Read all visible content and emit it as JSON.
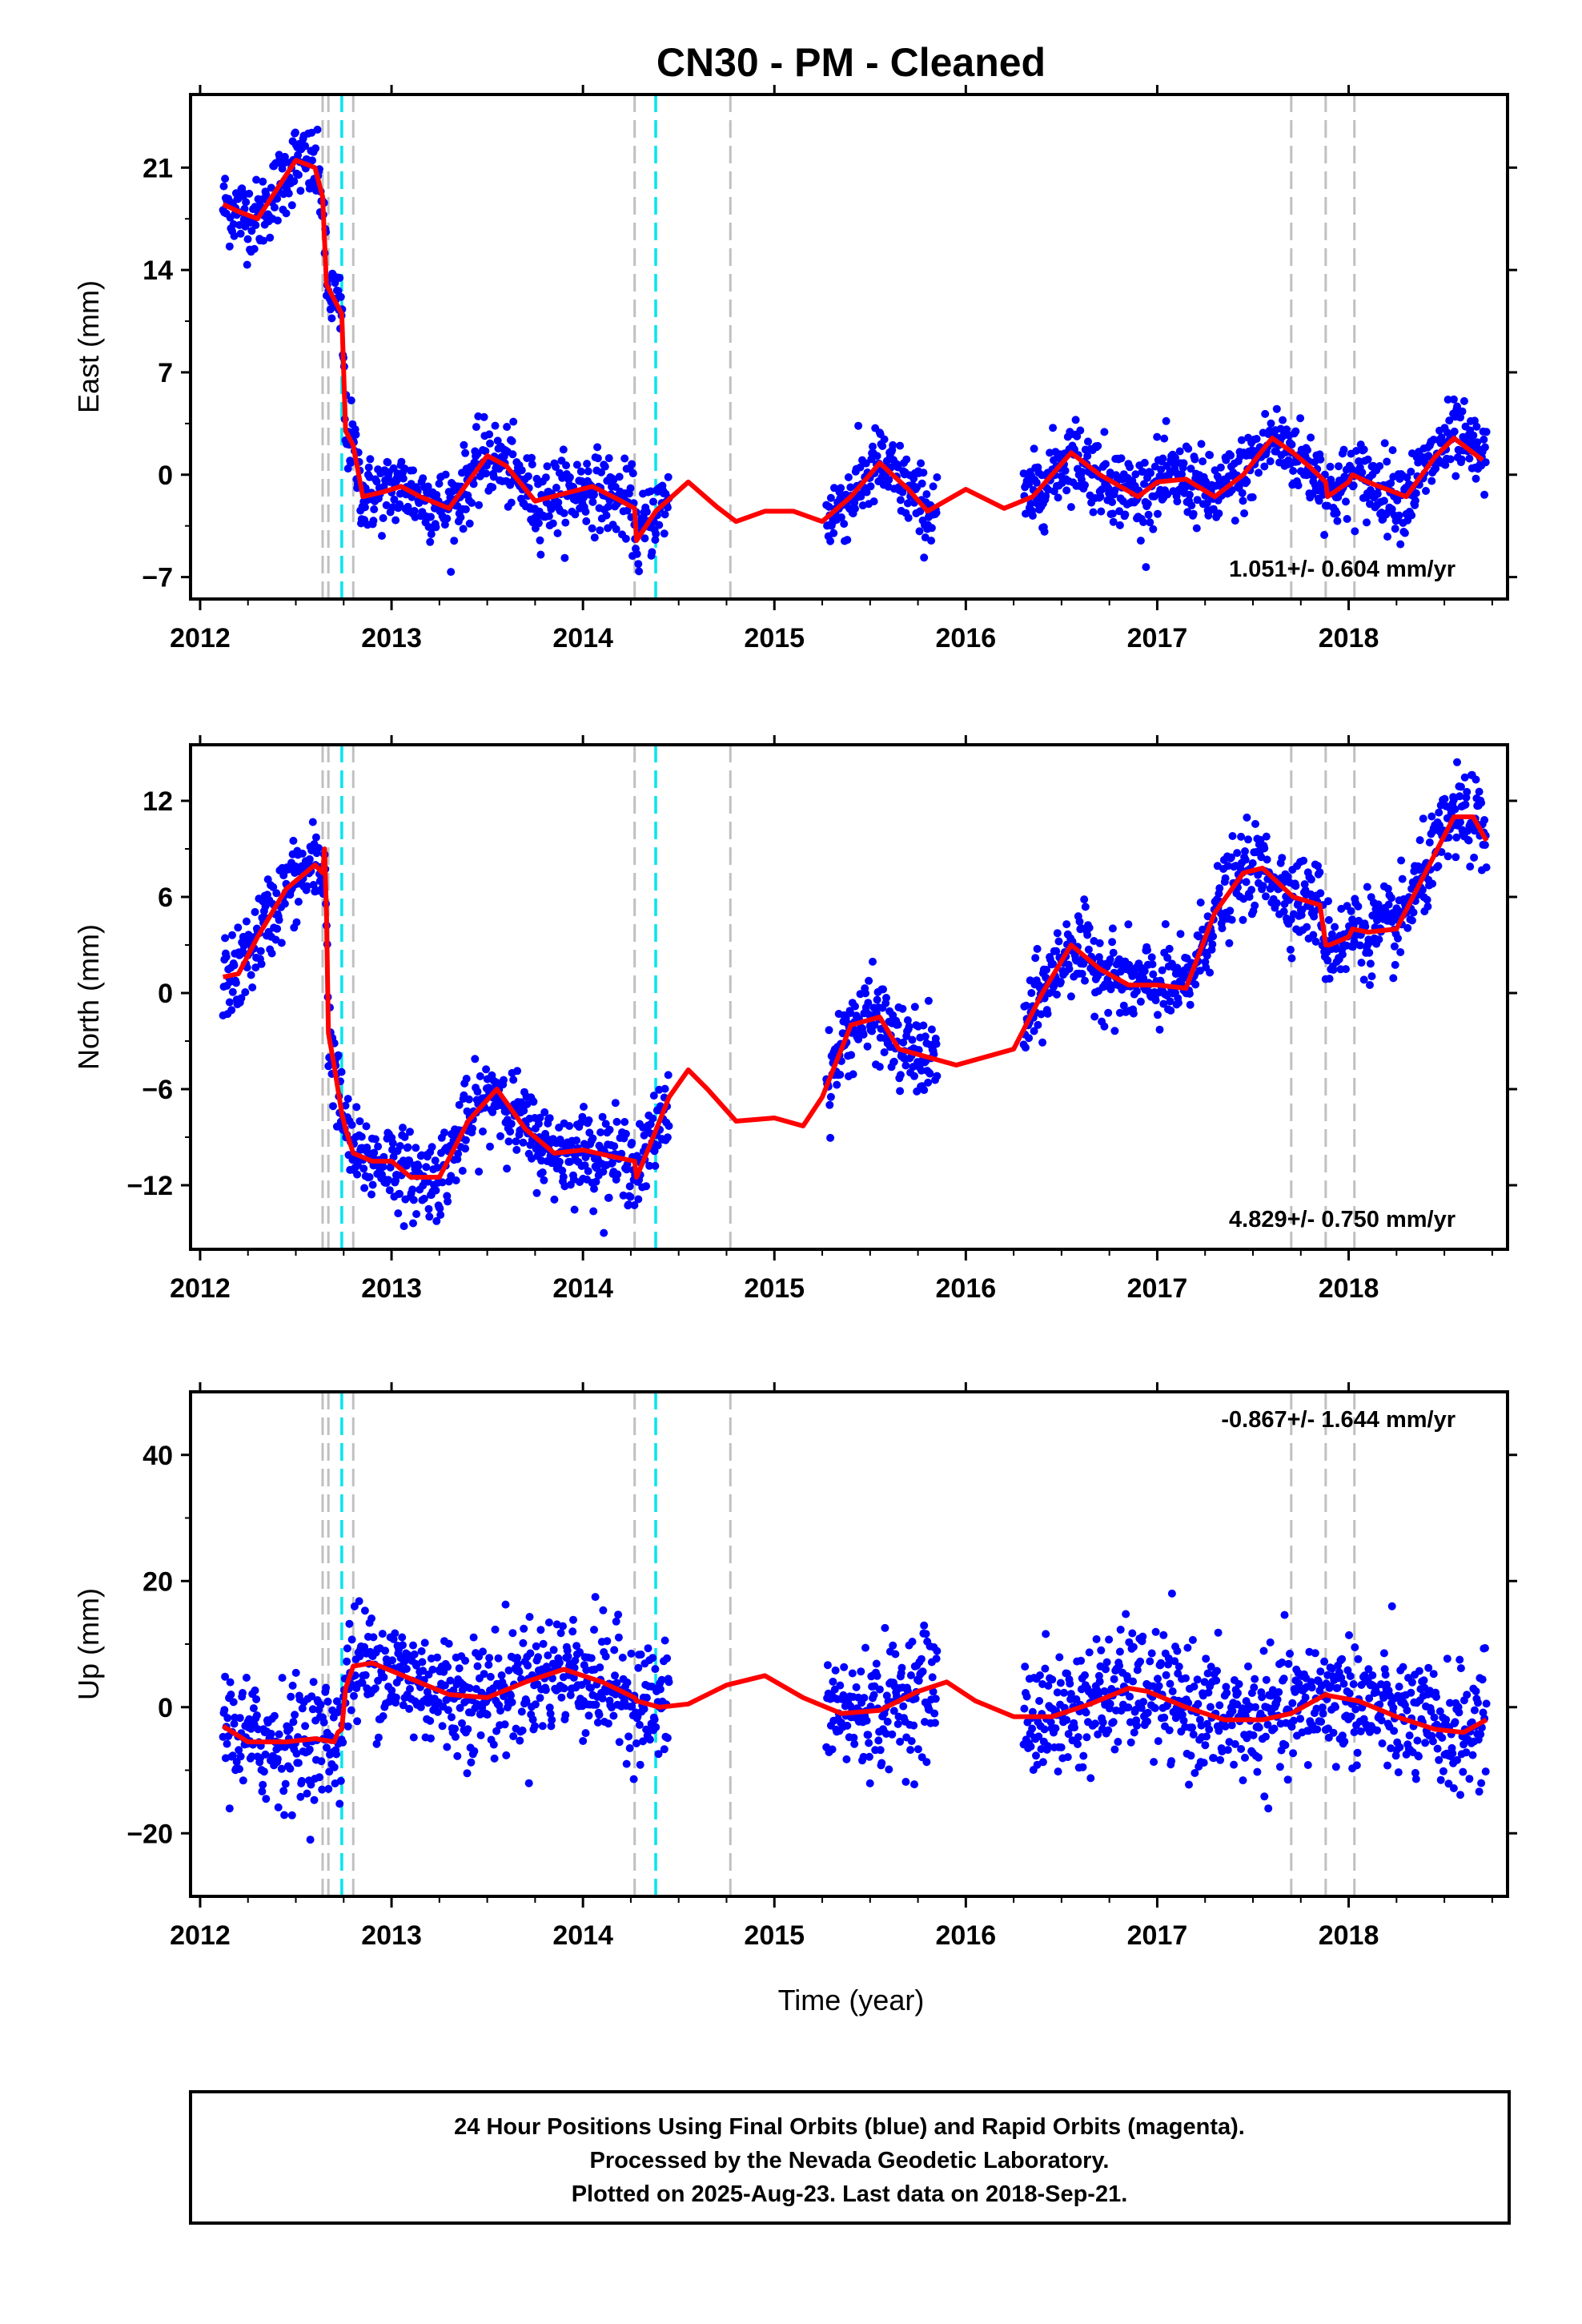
{
  "title": "CN30  - PM - Cleaned",
  "x_axis_label": "Time (year)",
  "footer": {
    "line1": "24 Hour Positions Using Final Orbits (blue) and Rapid Orbits (magenta).",
    "line2": "Processed by the Nevada Geodetic Laboratory.",
    "line3": "Plotted on 2025-Aug-23. Last data on 2018-Sep-21."
  },
  "colors": {
    "data_points": "#0000ff",
    "model_fit": "#ff0000",
    "break_gray": "#c0c0c0",
    "break_cyan": "#00e5ee"
  },
  "chart_data": [
    {
      "type": "scatter",
      "component": "East",
      "ylabel": "East (mm)",
      "xlim": [
        2011.95,
        2018.83
      ],
      "ylim": [
        -8.5,
        26
      ],
      "yticks": [
        -7,
        0,
        7,
        14,
        21
      ],
      "xticks": [
        2012,
        2013,
        2014,
        2015,
        2016,
        2017,
        2018
      ],
      "rate_label": "1.051+/- 0.604 mm/yr",
      "rate_position": "bottom-right",
      "grid": false,
      "model_fit": {
        "x": [
          2012.12,
          2012.2,
          2012.3,
          2012.4,
          2012.5,
          2012.6,
          2012.64,
          2012.66,
          2012.7,
          2012.74,
          2012.76,
          2012.8,
          2012.85,
          2012.95,
          2013.05,
          2013.15,
          2013.3,
          2013.5,
          2013.6,
          2013.75,
          2013.9,
          2014.05,
          2014.2,
          2014.27,
          2014.28,
          2014.38,
          2014.55,
          2014.7,
          2014.8,
          2014.95,
          2015.1,
          2015.25,
          2015.4,
          2015.55,
          2015.7,
          2015.8,
          2016.0,
          2016.2,
          2016.35,
          2016.55,
          2016.7,
          2016.9,
          2017.0,
          2017.15,
          2017.3,
          2017.45,
          2017.6,
          2017.71,
          2017.8,
          2017.88,
          2017.89,
          2018.0,
          2018.02,
          2018.1,
          2018.3,
          2018.45,
          2018.55,
          2018.7
        ],
        "y": [
          18.5,
          18.0,
          17.5,
          19.5,
          21.5,
          21.0,
          19.0,
          13.0,
          12.0,
          11.0,
          3.0,
          2.0,
          -1.5,
          -1.2,
          -0.8,
          -1.5,
          -2.3,
          1.3,
          0.6,
          -1.8,
          -1.3,
          -0.8,
          -1.8,
          -2.3,
          -4.5,
          -2.5,
          -0.5,
          -2.2,
          -3.2,
          -2.5,
          -2.5,
          -3.2,
          -1.5,
          0.8,
          -1.0,
          -2.5,
          -1.0,
          -2.3,
          -1.5,
          1.5,
          0.0,
          -1.5,
          -0.5,
          -0.3,
          -1.5,
          0.0,
          2.5,
          1.5,
          0.5,
          -0.5,
          -1.5,
          -0.5,
          0.0,
          -0.5,
          -1.5,
          1.2,
          2.5,
          1.0
        ]
      },
      "breaks": {
        "gray": [
          2012.64,
          2012.67,
          2012.8,
          2014.27,
          2014.77,
          2017.7,
          2017.88,
          2018.03
        ],
        "cyan": [
          2012.74,
          2014.38
        ]
      }
    },
    {
      "type": "scatter",
      "component": "North",
      "ylabel": "North (mm)",
      "xlim": [
        2011.95,
        2018.83
      ],
      "ylim": [
        -16,
        15.5
      ],
      "yticks": [
        -12,
        -6,
        0,
        6,
        12
      ],
      "xticks": [
        2012,
        2013,
        2014,
        2015,
        2016,
        2017,
        2018
      ],
      "rate_label": "4.829+/- 0.750 mm/yr",
      "rate_position": "bottom-right",
      "grid": false,
      "model_fit": {
        "x": [
          2012.12,
          2012.2,
          2012.3,
          2012.45,
          2012.6,
          2012.64,
          2012.65,
          2012.66,
          2012.67,
          2012.7,
          2012.74,
          2012.76,
          2012.8,
          2012.9,
          2013.0,
          2013.1,
          2013.25,
          2013.4,
          2013.55,
          2013.7,
          2013.85,
          2014.0,
          2014.15,
          2014.27,
          2014.28,
          2014.35,
          2014.45,
          2014.55,
          2014.65,
          2014.8,
          2015.0,
          2015.15,
          2015.25,
          2015.4,
          2015.55,
          2015.65,
          2015.8,
          2015.95,
          2016.1,
          2016.25,
          2016.4,
          2016.55,
          2016.7,
          2016.85,
          2017.0,
          2017.15,
          2017.3,
          2017.45,
          2017.55,
          2017.71,
          2017.85,
          2017.88,
          2017.9,
          2018.0,
          2018.02,
          2018.1,
          2018.25,
          2018.4,
          2018.55,
          2018.65,
          2018.72
        ],
        "y": [
          1.0,
          1.2,
          3.5,
          6.5,
          8.0,
          7.5,
          9.0,
          5.0,
          -2.5,
          -4.5,
          -7.5,
          -8.5,
          -10.0,
          -10.5,
          -10.5,
          -11.5,
          -11.5,
          -8.0,
          -6.0,
          -8.5,
          -10.0,
          -9.8,
          -10.2,
          -10.5,
          -11.5,
          -9.5,
          -6.5,
          -4.8,
          -6.0,
          -8.0,
          -7.8,
          -8.3,
          -6.5,
          -2.0,
          -1.5,
          -3.5,
          -4.0,
          -4.5,
          -4.0,
          -3.5,
          0.0,
          3.0,
          1.5,
          0.5,
          0.5,
          0.3,
          5.0,
          7.5,
          7.8,
          6.0,
          5.5,
          3.0,
          3.0,
          3.5,
          4.0,
          3.8,
          4.0,
          7.5,
          11.0,
          11.0,
          9.5
        ]
      },
      "breaks": {
        "gray": [
          2012.64,
          2012.67,
          2012.8,
          2014.27,
          2014.77,
          2017.7,
          2017.88,
          2018.03
        ],
        "cyan": [
          2012.74,
          2014.38
        ]
      }
    },
    {
      "type": "scatter",
      "component": "Up",
      "ylabel": "Up (mm)",
      "xlim": [
        2011.95,
        2018.83
      ],
      "ylim": [
        -30,
        50
      ],
      "yticks": [
        -20,
        0,
        20,
        40
      ],
      "xticks": [
        2012,
        2013,
        2014,
        2015,
        2016,
        2017,
        2018
      ],
      "rate_label": "-0.867+/- 1.644 mm/yr",
      "rate_position": "top-right",
      "grid": false,
      "model_fit": {
        "x": [
          2012.12,
          2012.25,
          2012.45,
          2012.6,
          2012.7,
          2012.72,
          2012.74,
          2012.76,
          2012.8,
          2012.9,
          2013.1,
          2013.3,
          2013.5,
          2013.7,
          2013.9,
          2014.1,
          2014.27,
          2014.28,
          2014.4,
          2014.55,
          2014.75,
          2014.95,
          2015.15,
          2015.35,
          2015.55,
          2015.75,
          2015.9,
          2016.05,
          2016.25,
          2016.45,
          2016.65,
          2016.85,
          2016.95,
          2017.15,
          2017.35,
          2017.55,
          2017.7,
          2017.88,
          2017.9,
          2018.05,
          2018.25,
          2018.45,
          2018.6,
          2018.72
        ],
        "y": [
          -3.0,
          -5.5,
          -5.5,
          -5.0,
          -5.5,
          -4.0,
          -3.5,
          3.0,
          6.5,
          7.0,
          4.5,
          2.0,
          1.5,
          4.0,
          6.0,
          4.0,
          1.5,
          1.0,
          0.0,
          0.5,
          3.5,
          5.0,
          1.5,
          -1.0,
          -0.5,
          2.5,
          4.0,
          1.0,
          -1.5,
          -1.5,
          0.5,
          3.0,
          2.5,
          0.0,
          -2.0,
          -2.0,
          -1.0,
          2.0,
          1.8,
          1.0,
          -1.5,
          -3.5,
          -4.0,
          -2.0
        ]
      },
      "breaks": {
        "gray": [
          2012.64,
          2012.67,
          2012.8,
          2014.27,
          2014.77,
          2017.7,
          2017.88,
          2018.03
        ],
        "cyan": [
          2012.74,
          2014.38
        ]
      }
    }
  ]
}
